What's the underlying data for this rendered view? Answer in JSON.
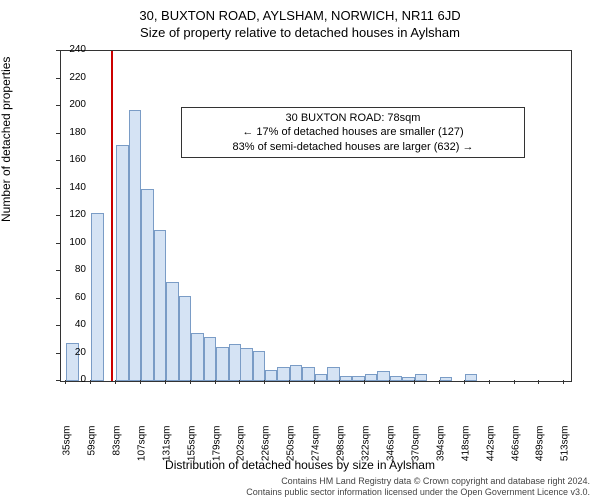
{
  "title_main": "30, BUXTON ROAD, AYLSHAM, NORWICH, NR11 6JD",
  "title_sub": "Size of property relative to detached houses in Aylsham",
  "callout": {
    "line1": "30 BUXTON ROAD: 78sqm",
    "line2": "← 17% of detached houses are smaller (127)",
    "line3": "83% of semi-detached houses are larger (632) →"
  },
  "y_axis_label": "Number of detached properties",
  "x_axis_label": "Distribution of detached houses by size in Aylsham",
  "footer": {
    "line1": "Contains HM Land Registry data © Crown copyright and database right 2024.",
    "line2": "Contains public sector information licensed under the Open Government Licence v3.0."
  },
  "chart": {
    "type": "histogram",
    "background_color": "#ffffff",
    "bar_fill": "#d5e3f4",
    "bar_stroke": "#7a9cc6",
    "reference_line_color": "#cc0000",
    "reference_x": 78,
    "x_min": 30,
    "x_max": 520,
    "y_min": 0,
    "y_max": 240,
    "y_tick_step": 20,
    "x_ticks": [
      35,
      59,
      83,
      107,
      131,
      155,
      179,
      202,
      226,
      250,
      274,
      298,
      322,
      346,
      370,
      394,
      418,
      442,
      466,
      489,
      513
    ],
    "x_tick_suffix": "sqm",
    "bin_width": 24,
    "bins": [
      {
        "x": 35,
        "count": 28
      },
      {
        "x": 59,
        "count": 122
      },
      {
        "x": 83,
        "count": 172
      },
      {
        "x": 95,
        "count": 197
      },
      {
        "x": 107,
        "count": 140
      },
      {
        "x": 119,
        "count": 110
      },
      {
        "x": 131,
        "count": 72
      },
      {
        "x": 143,
        "count": 62
      },
      {
        "x": 155,
        "count": 35
      },
      {
        "x": 167,
        "count": 32
      },
      {
        "x": 179,
        "count": 25
      },
      {
        "x": 191,
        "count": 27
      },
      {
        "x": 202,
        "count": 24
      },
      {
        "x": 214,
        "count": 22
      },
      {
        "x": 226,
        "count": 8
      },
      {
        "x": 238,
        "count": 10
      },
      {
        "x": 250,
        "count": 12
      },
      {
        "x": 262,
        "count": 10
      },
      {
        "x": 274,
        "count": 5
      },
      {
        "x": 286,
        "count": 10
      },
      {
        "x": 298,
        "count": 4
      },
      {
        "x": 310,
        "count": 4
      },
      {
        "x": 322,
        "count": 5
      },
      {
        "x": 334,
        "count": 7
      },
      {
        "x": 346,
        "count": 4
      },
      {
        "x": 358,
        "count": 3
      },
      {
        "x": 370,
        "count": 5
      },
      {
        "x": 394,
        "count": 3
      },
      {
        "x": 418,
        "count": 5
      }
    ]
  }
}
